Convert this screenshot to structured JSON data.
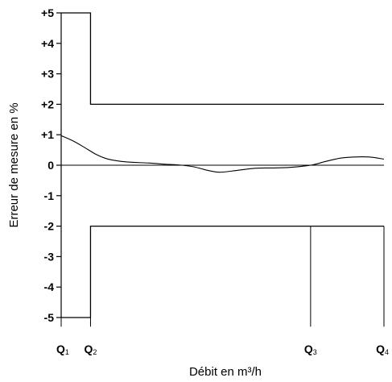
{
  "chart_data": {
    "type": "line",
    "xlabel": "Débit en m³/h",
    "ylabel": "Erreur de mesure en %",
    "ylim": [
      -5,
      5
    ],
    "yticks": [
      "+5",
      "+4",
      "+3",
      "+2",
      "+1",
      "0",
      "-1",
      "-2",
      "-3",
      "-4",
      "-5"
    ],
    "y_tick_values": [
      5,
      4,
      3,
      2,
      1,
      0,
      -1,
      -2,
      -3,
      -4,
      -5
    ],
    "xticks": [
      {
        "main": "Q",
        "sub": "1"
      },
      {
        "main": "Q",
        "sub": "2"
      },
      {
        "main": "Q",
        "sub": "3"
      },
      {
        "main": "Q",
        "sub": "4"
      }
    ],
    "x_tick_values": [
      0,
      1,
      8.5,
      11
    ],
    "xlim": [
      0,
      11
    ],
    "grid": false,
    "series": [
      {
        "role": "upper-limit",
        "x": [
          0,
          1,
          1,
          11
        ],
        "y": [
          5,
          5,
          2,
          2
        ]
      },
      {
        "role": "lower-limit",
        "x": [
          0,
          1,
          1,
          11
        ],
        "y": [
          -5,
          -5,
          -2,
          -2
        ]
      },
      {
        "role": "measured-error-curve",
        "x": [
          0,
          0.4,
          0.8,
          1.2,
          1.6,
          2.2,
          3,
          3.6,
          4,
          4.5,
          5,
          5.4,
          6,
          6.6,
          7.2,
          7.8,
          8.5,
          9,
          9.5,
          10,
          10.5,
          11
        ],
        "y": [
          0.97,
          0.8,
          0.58,
          0.35,
          0.2,
          0.11,
          0.07,
          0.03,
          0.01,
          -0.05,
          -0.17,
          -0.23,
          -0.17,
          -0.1,
          -0.09,
          -0.07,
          0.0,
          0.12,
          0.23,
          0.27,
          0.27,
          0.2
        ]
      }
    ],
    "reference_line": {
      "y": 0,
      "x": [
        0,
        11
      ]
    },
    "x_guides": [
      {
        "x": 0,
        "y": [
          -5.3,
          -5
        ]
      },
      {
        "x": 1,
        "y": [
          -5.3,
          -5
        ]
      },
      {
        "x": 8.5,
        "y": [
          -5.3,
          -2
        ]
      },
      {
        "x": 11,
        "y": [
          -5.3,
          -2
        ]
      }
    ]
  }
}
